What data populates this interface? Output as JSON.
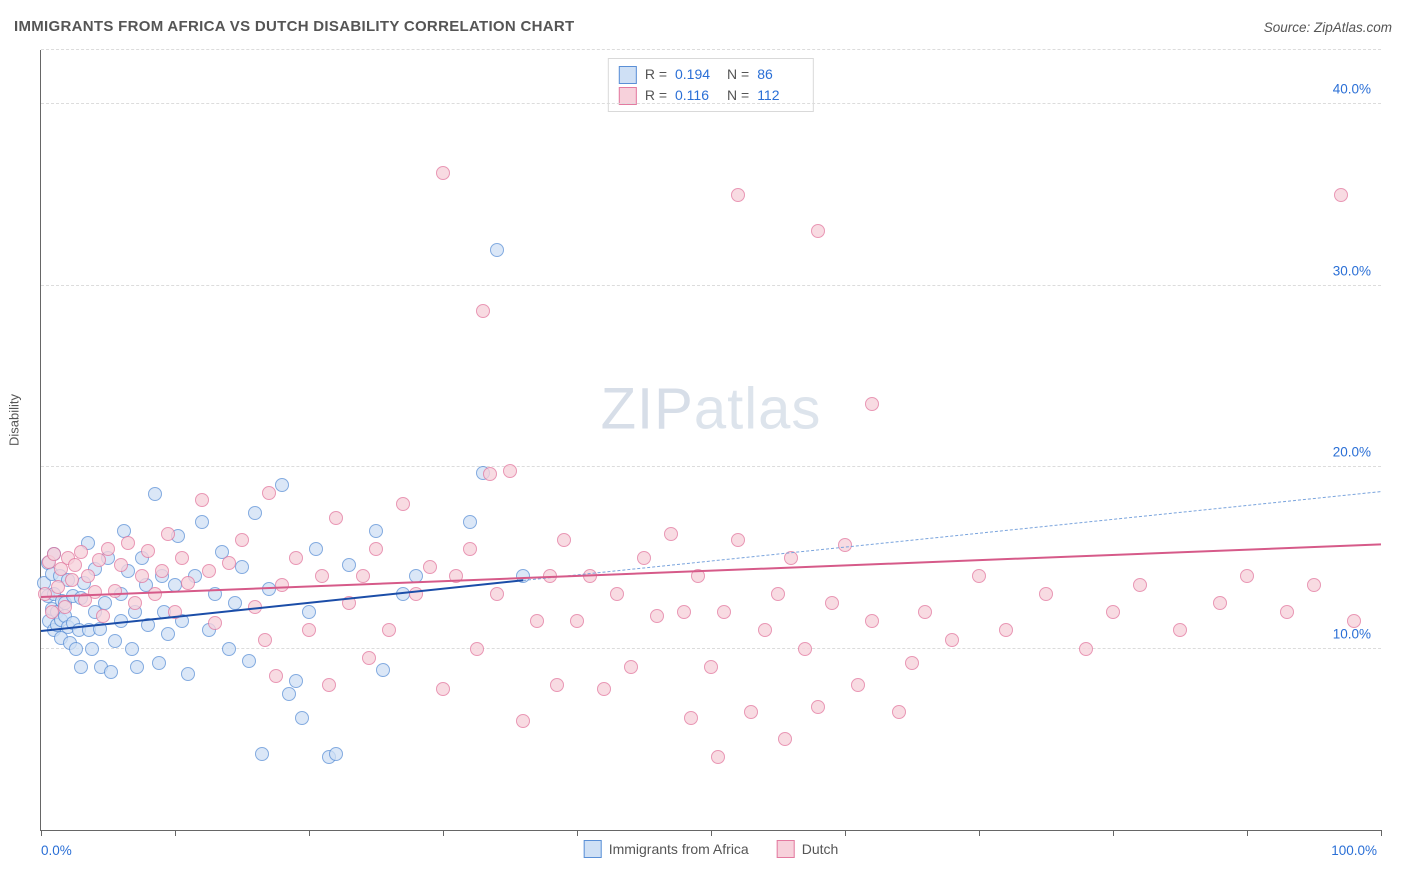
{
  "header": {
    "title": "IMMIGRANTS FROM AFRICA VS DUTCH DISABILITY CORRELATION CHART",
    "source": "Source: ZipAtlas.com"
  },
  "watermark": {
    "prefix": "ZIP",
    "suffix": "atlas"
  },
  "chart": {
    "type": "scatter",
    "ylabel": "Disability",
    "background_color": "#ffffff",
    "grid_color": "#dcdcdc",
    "axis_color": "#666666",
    "tick_label_color": "#2a6fd6",
    "label_fontsize": 13,
    "tick_fontsize": 13.5,
    "title_fontsize": 15,
    "xlim": [
      0,
      100
    ],
    "ylim": [
      0,
      43
    ],
    "x_axis": {
      "ticks_minor": [
        0,
        10,
        20,
        30,
        40,
        50,
        60,
        70,
        80,
        90,
        100
      ],
      "labels": [
        {
          "value": 0,
          "text": "0.0%"
        },
        {
          "value": 100,
          "text": "100.0%"
        }
      ]
    },
    "y_axis": {
      "gridlines": [
        10,
        20,
        30,
        40,
        43
      ],
      "labels": [
        {
          "value": 10,
          "text": "10.0%"
        },
        {
          "value": 20,
          "text": "20.0%"
        },
        {
          "value": 30,
          "text": "30.0%"
        },
        {
          "value": 40,
          "text": "40.0%"
        }
      ]
    },
    "series": [
      {
        "id": "africa",
        "label": "Immigrants from Africa",
        "marker_radius": 7,
        "fill": "#cfe0f5",
        "stroke": "#5a8fd6",
        "fill_opacity": 0.75,
        "stats": {
          "R": "0.194",
          "N": "86"
        },
        "trend": {
          "x1": 0,
          "y1": 11.0,
          "x2": 36,
          "y2": 13.8,
          "x_extend": 100,
          "y_extend": 18.7,
          "solid_color": "#1b4da8",
          "solid_width": 2.2,
          "dash_color": "#7aa4dd",
          "dash_width": 1.6,
          "dash_pattern": "7,6"
        },
        "points": [
          [
            0.2,
            13.6
          ],
          [
            0.5,
            12.9
          ],
          [
            0.5,
            14.7
          ],
          [
            0.6,
            11.5
          ],
          [
            0.8,
            14.1
          ],
          [
            0.8,
            12.2
          ],
          [
            1.0,
            15.2
          ],
          [
            1.0,
            13.0
          ],
          [
            1.0,
            11.0
          ],
          [
            1.2,
            11.3
          ],
          [
            1.2,
            12.0
          ],
          [
            1.4,
            14.0
          ],
          [
            1.5,
            10.6
          ],
          [
            1.5,
            11.6
          ],
          [
            1.6,
            12.6
          ],
          [
            1.8,
            11.8
          ],
          [
            1.8,
            12.5
          ],
          [
            2.0,
            11.2
          ],
          [
            2.0,
            13.8
          ],
          [
            2.2,
            10.3
          ],
          [
            2.4,
            11.4
          ],
          [
            2.4,
            12.9
          ],
          [
            2.6,
            10.0
          ],
          [
            2.8,
            11.0
          ],
          [
            3.0,
            12.8
          ],
          [
            3.0,
            9.0
          ],
          [
            3.2,
            13.6
          ],
          [
            3.5,
            15.8
          ],
          [
            3.6,
            11.0
          ],
          [
            3.8,
            10.0
          ],
          [
            4.0,
            12.0
          ],
          [
            4.0,
            14.4
          ],
          [
            4.4,
            11.1
          ],
          [
            4.5,
            9.0
          ],
          [
            4.8,
            12.5
          ],
          [
            5.0,
            15.0
          ],
          [
            5.2,
            8.7
          ],
          [
            5.5,
            10.4
          ],
          [
            6.0,
            13.0
          ],
          [
            6.0,
            11.5
          ],
          [
            6.2,
            16.5
          ],
          [
            6.5,
            14.3
          ],
          [
            6.8,
            10.0
          ],
          [
            7.0,
            12.0
          ],
          [
            7.2,
            9.0
          ],
          [
            7.5,
            15.0
          ],
          [
            7.8,
            13.5
          ],
          [
            8.0,
            11.3
          ],
          [
            8.5,
            18.5
          ],
          [
            8.8,
            9.2
          ],
          [
            9.0,
            14.0
          ],
          [
            9.2,
            12.0
          ],
          [
            9.5,
            10.8
          ],
          [
            10.0,
            13.5
          ],
          [
            10.2,
            16.2
          ],
          [
            10.5,
            11.5
          ],
          [
            11.0,
            8.6
          ],
          [
            11.5,
            14.0
          ],
          [
            12.0,
            17.0
          ],
          [
            12.5,
            11.0
          ],
          [
            13.0,
            13.0
          ],
          [
            13.5,
            15.3
          ],
          [
            14.0,
            10.0
          ],
          [
            14.5,
            12.5
          ],
          [
            15.0,
            14.5
          ],
          [
            15.5,
            9.3
          ],
          [
            16.0,
            17.5
          ],
          [
            16.5,
            4.2
          ],
          [
            17.0,
            13.3
          ],
          [
            18.0,
            19.0
          ],
          [
            18.5,
            7.5
          ],
          [
            19.0,
            8.2
          ],
          [
            19.5,
            6.2
          ],
          [
            20.0,
            12.0
          ],
          [
            20.5,
            15.5
          ],
          [
            21.5,
            4.0
          ],
          [
            22.0,
            4.2
          ],
          [
            23.0,
            14.6
          ],
          [
            25.0,
            16.5
          ],
          [
            25.5,
            8.8
          ],
          [
            27.0,
            13.0
          ],
          [
            28.0,
            14.0
          ],
          [
            32.0,
            17.0
          ],
          [
            33.0,
            19.7
          ],
          [
            34.0,
            32.0
          ],
          [
            36.0,
            14.0
          ]
        ]
      },
      {
        "id": "dutch",
        "label": "Dutch",
        "marker_radius": 7,
        "fill": "#f7d1db",
        "stroke": "#e37aa0",
        "fill_opacity": 0.78,
        "stats": {
          "R": "0.116",
          "N": "112"
        },
        "trend": {
          "x1": 0,
          "y1": 12.9,
          "x2": 100,
          "y2": 15.8,
          "solid_color": "#d65a89",
          "solid_width": 2.2
        },
        "points": [
          [
            0.3,
            13.0
          ],
          [
            0.6,
            14.8
          ],
          [
            0.8,
            12.0
          ],
          [
            1.0,
            15.2
          ],
          [
            1.3,
            13.4
          ],
          [
            1.5,
            14.4
          ],
          [
            1.8,
            12.3
          ],
          [
            2.0,
            15.0
          ],
          [
            2.3,
            13.8
          ],
          [
            2.5,
            14.6
          ],
          [
            3.0,
            15.3
          ],
          [
            3.3,
            12.7
          ],
          [
            3.5,
            14.0
          ],
          [
            4.0,
            13.1
          ],
          [
            4.3,
            14.9
          ],
          [
            4.6,
            11.8
          ],
          [
            5.0,
            15.5
          ],
          [
            5.5,
            13.2
          ],
          [
            6.0,
            14.6
          ],
          [
            6.5,
            15.8
          ],
          [
            7.0,
            12.5
          ],
          [
            7.5,
            14.0
          ],
          [
            8.0,
            15.4
          ],
          [
            8.5,
            13.0
          ],
          [
            9.0,
            14.3
          ],
          [
            9.5,
            16.3
          ],
          [
            10.0,
            12.0
          ],
          [
            10.5,
            15.0
          ],
          [
            11.0,
            13.6
          ],
          [
            12.0,
            18.2
          ],
          [
            12.5,
            14.3
          ],
          [
            13.0,
            11.4
          ],
          [
            14.0,
            14.7
          ],
          [
            15.0,
            16.0
          ],
          [
            16.0,
            12.3
          ],
          [
            16.7,
            10.5
          ],
          [
            17.0,
            18.6
          ],
          [
            17.5,
            8.5
          ],
          [
            18.0,
            13.5
          ],
          [
            19.0,
            15.0
          ],
          [
            20.0,
            11.0
          ],
          [
            21.0,
            14.0
          ],
          [
            21.5,
            8.0
          ],
          [
            22.0,
            17.2
          ],
          [
            23.0,
            12.5
          ],
          [
            24.0,
            14.0
          ],
          [
            24.5,
            9.5
          ],
          [
            25.0,
            15.5
          ],
          [
            26.0,
            11.0
          ],
          [
            27.0,
            18.0
          ],
          [
            28.0,
            13.0
          ],
          [
            29.0,
            14.5
          ],
          [
            30.0,
            36.2
          ],
          [
            30.0,
            7.8
          ],
          [
            31.0,
            14.0
          ],
          [
            32.0,
            15.5
          ],
          [
            32.5,
            10.0
          ],
          [
            33.0,
            28.6
          ],
          [
            33.5,
            19.6
          ],
          [
            34.0,
            13.0
          ],
          [
            35.0,
            19.8
          ],
          [
            36.0,
            6.0
          ],
          [
            37.0,
            11.5
          ],
          [
            38.0,
            14.0
          ],
          [
            38.5,
            8.0
          ],
          [
            39.0,
            16.0
          ],
          [
            40.0,
            11.5
          ],
          [
            41.0,
            14.0
          ],
          [
            42.0,
            7.8
          ],
          [
            43.0,
            13.0
          ],
          [
            44.0,
            9.0
          ],
          [
            45.0,
            15.0
          ],
          [
            46.0,
            11.8
          ],
          [
            47.0,
            16.3
          ],
          [
            48.0,
            12.0
          ],
          [
            48.5,
            6.2
          ],
          [
            49.0,
            14.0
          ],
          [
            50.0,
            9.0
          ],
          [
            50.5,
            4.0
          ],
          [
            51.0,
            12.0
          ],
          [
            52.0,
            16.0
          ],
          [
            52.0,
            35.0
          ],
          [
            53.0,
            6.5
          ],
          [
            54.0,
            11.0
          ],
          [
            55.0,
            13.0
          ],
          [
            55.5,
            5.0
          ],
          [
            56.0,
            15.0
          ],
          [
            57.0,
            10.0
          ],
          [
            58.0,
            6.8
          ],
          [
            58.0,
            33.0
          ],
          [
            59.0,
            12.5
          ],
          [
            60.0,
            15.7
          ],
          [
            61.0,
            8.0
          ],
          [
            62.0,
            11.5
          ],
          [
            62.0,
            23.5
          ],
          [
            64.0,
            6.5
          ],
          [
            65.0,
            9.2
          ],
          [
            66.0,
            12.0
          ],
          [
            68.0,
            10.5
          ],
          [
            70.0,
            14.0
          ],
          [
            72.0,
            11.0
          ],
          [
            75.0,
            13.0
          ],
          [
            78.0,
            10.0
          ],
          [
            80.0,
            12.0
          ],
          [
            82.0,
            13.5
          ],
          [
            85.0,
            11.0
          ],
          [
            88.0,
            12.5
          ],
          [
            90.0,
            14.0
          ],
          [
            93.0,
            12.0
          ],
          [
            95.0,
            13.5
          ],
          [
            97.0,
            35.0
          ],
          [
            98.0,
            11.5
          ]
        ]
      }
    ],
    "legend": {
      "stats_box": {
        "r_label": "R =",
        "n_label": "N ="
      },
      "bottom": true
    }
  }
}
